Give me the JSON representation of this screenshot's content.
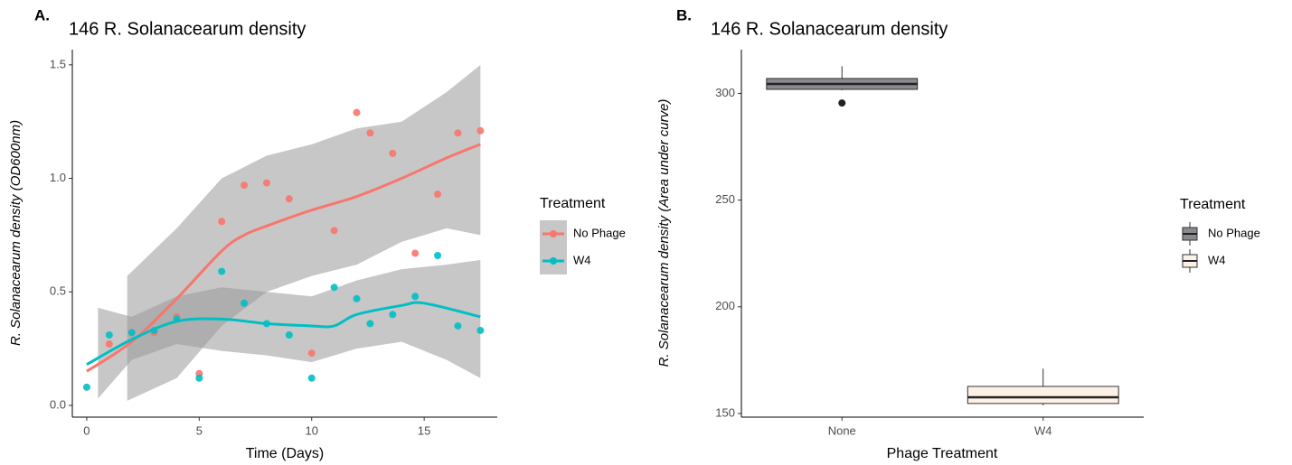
{
  "chart_data": [
    {
      "type": "scatter",
      "label": "A.",
      "title": "146 R. Solanacearum density",
      "x_label": "Time (Days)",
      "y_label": "R. Solanacearum density (OD600nm)",
      "xlim": [
        -0.64,
        18.25
      ],
      "xticks": [
        0,
        5,
        10,
        15
      ],
      "ylim": [
        -0.052,
        1.567
      ],
      "yticks": [
        {
          "value": 0,
          "label": "0.0"
        },
        {
          "value": 0.5,
          "label": "0.5"
        },
        {
          "value": 1,
          "label": "1.0"
        },
        {
          "value": 1.5,
          "label": "1.5"
        }
      ],
      "legend_title": "Treatment",
      "series": [
        {
          "name": "No Phage",
          "color": "#F8766D",
          "x": [
            1,
            2,
            3,
            4,
            5,
            6,
            7,
            8,
            9,
            10,
            11,
            12,
            12.6,
            13.6,
            14.6,
            15.6,
            16.5,
            17.5
          ],
          "values": [
            0.27,
            0.32,
            0.32,
            0.39,
            0.14,
            0.81,
            0.97,
            0.98,
            0.91,
            0.23,
            0.77,
            1.29,
            1.2,
            1.11,
            0.67,
            0.93,
            1.2,
            1.21
          ],
          "fit_x": [
            0,
            2,
            4,
            6,
            7,
            8,
            10,
            12,
            14,
            16,
            17.5
          ],
          "fit": [
            0.15,
            0.28,
            0.47,
            0.68,
            0.75,
            0.79,
            0.86,
            0.92,
            1.0,
            1.09,
            1.15
          ],
          "band_x": [
            1.8,
            4,
            6,
            8,
            10,
            12,
            14,
            16,
            17.5
          ],
          "band_lower": [
            0.02,
            0.12,
            0.35,
            0.5,
            0.57,
            0.62,
            0.72,
            0.78,
            0.75
          ],
          "band_upper": [
            0.57,
            0.78,
            1.0,
            1.1,
            1.15,
            1.22,
            1.25,
            1.38,
            1.5
          ]
        },
        {
          "name": "W4",
          "color": "#00BFC4",
          "x": [
            0,
            1,
            2,
            3,
            4,
            5,
            6,
            7,
            8,
            9,
            10,
            11,
            12,
            12.6,
            13.6,
            14.6,
            15.6,
            16.5,
            17.5
          ],
          "values": [
            0.08,
            0.31,
            0.32,
            0.33,
            0.38,
            0.12,
            0.59,
            0.45,
            0.36,
            0.31,
            0.12,
            0.52,
            0.47,
            0.36,
            0.4,
            0.48,
            0.66,
            0.35,
            0.33
          ],
          "fit_x": [
            0,
            2,
            4,
            6,
            8,
            10,
            11,
            12,
            14,
            15,
            17.5
          ],
          "fit": [
            0.18,
            0.29,
            0.37,
            0.38,
            0.36,
            0.35,
            0.35,
            0.4,
            0.44,
            0.45,
            0.39
          ],
          "band_x": [
            0.5,
            2,
            4,
            6,
            8,
            10,
            12,
            14,
            16,
            17.5
          ],
          "band_lower": [
            0.03,
            0.2,
            0.27,
            0.24,
            0.22,
            0.19,
            0.25,
            0.28,
            0.2,
            0.12
          ],
          "band_upper": [
            0.43,
            0.39,
            0.48,
            0.52,
            0.5,
            0.48,
            0.55,
            0.6,
            0.62,
            0.64
          ]
        }
      ]
    },
    {
      "type": "box",
      "label": "B.",
      "title": "146 R. Solanacearum density",
      "x_label": "Phage Treatment",
      "y_label": "R. Solanacearum density (Area under curve)",
      "categories": [
        "None",
        "W4"
      ],
      "ylim": [
        148.3,
        320.5
      ],
      "yticks": [
        150,
        200,
        250,
        300
      ],
      "legend_title": "Treatment",
      "series": [
        {
          "name": "No Phage",
          "color": "#8a8a8e",
          "min": 301.5,
          "q1": 301.9,
          "median": 304.4,
          "q3": 307,
          "max": 312.7,
          "outliers": [
            295.5
          ]
        },
        {
          "name": "W4",
          "color": "#FBF1E6",
          "min": 153.8,
          "q1": 154.7,
          "median": 157.6,
          "q3": 162.7,
          "max": 171,
          "outliers": []
        }
      ]
    }
  ]
}
